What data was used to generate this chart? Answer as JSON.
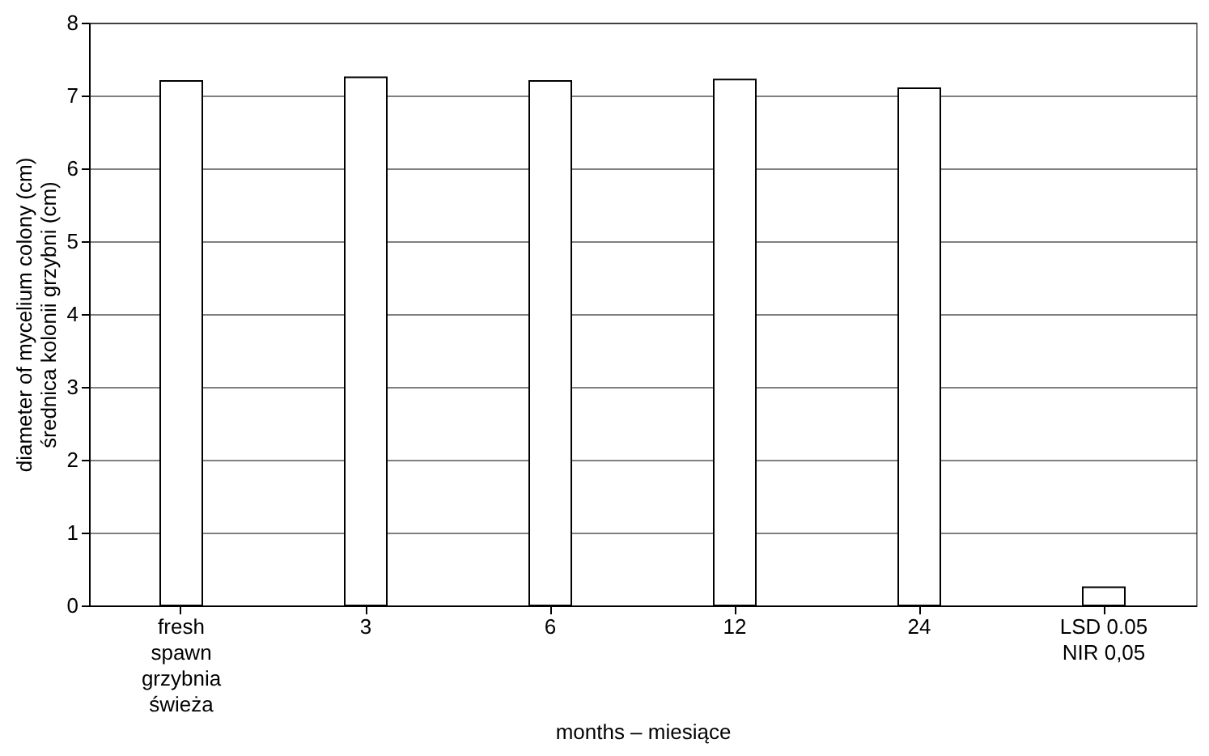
{
  "chart_data": {
    "type": "bar",
    "xlabel": "months – miesiące",
    "ylabel": "diameter of mycelium colony (cm)\nśrednica kolonii grzybni (cm)",
    "categories": [
      "fresh\nspawn\ngrzybnia\nświeża",
      "3",
      "6",
      "12",
      "24",
      "LSD 0.05\nNIR 0,05"
    ],
    "values": [
      7.2,
      7.25,
      7.2,
      7.22,
      7.1,
      0.25
    ],
    "color": "#ffffff",
    "ylim": [
      0,
      8
    ],
    "yticks": [
      0,
      1,
      2,
      3,
      4,
      5,
      6,
      7,
      8
    ],
    "grid": "y"
  }
}
